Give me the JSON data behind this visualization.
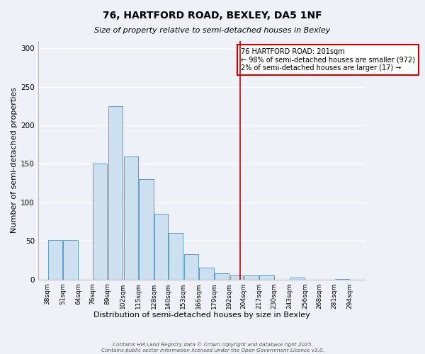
{
  "title": "76, HARTFORD ROAD, BEXLEY, DA5 1NF",
  "subtitle": "Size of property relative to semi-detached houses in Bexley",
  "xlabel": "Distribution of semi-detached houses by size in Bexley",
  "ylabel": "Number of semi-detached properties",
  "bar_left_edges": [
    38,
    51,
    64,
    76,
    89,
    102,
    115,
    128,
    140,
    153,
    166,
    179,
    192,
    204,
    217,
    230,
    243,
    256,
    268,
    281
  ],
  "bar_widths": [
    13,
    13,
    12,
    13,
    13,
    13,
    13,
    12,
    13,
    13,
    13,
    13,
    12,
    13,
    13,
    13,
    13,
    12,
    13,
    13
  ],
  "bar_heights": [
    51,
    51,
    0,
    150,
    225,
    160,
    130,
    85,
    60,
    33,
    15,
    8,
    5,
    5,
    5,
    0,
    2,
    0,
    0,
    1
  ],
  "tick_labels": [
    "38sqm",
    "51sqm",
    "64sqm",
    "76sqm",
    "89sqm",
    "102sqm",
    "115sqm",
    "128sqm",
    "140sqm",
    "153sqm",
    "166sqm",
    "179sqm",
    "192sqm",
    "204sqm",
    "217sqm",
    "230sqm",
    "243sqm",
    "256sqm",
    "268sqm",
    "281sqm",
    "294sqm"
  ],
  "tick_positions": [
    38,
    51,
    64,
    76,
    89,
    102,
    115,
    128,
    140,
    153,
    166,
    179,
    192,
    204,
    217,
    230,
    243,
    256,
    268,
    281,
    294
  ],
  "bar_face_color": "#cce0f0",
  "bar_edge_color": "#5b9bd5",
  "vline_x": 201,
  "vline_color": "#cc0000",
  "annotation_title": "76 HARTFORD ROAD: 201sqm",
  "annotation_line1": "← 98% of semi-detached houses are smaller (972)",
  "annotation_line2": "2% of semi-detached houses are larger (17) →",
  "annotation_box_color": "#ffffff",
  "annotation_box_edge": "#cc0000",
  "ylim": [
    0,
    310
  ],
  "xlim": [
    30,
    307
  ],
  "yticks": [
    0,
    50,
    100,
    150,
    200,
    250,
    300
  ],
  "footer1": "Contains HM Land Registry data © Crown copyright and database right 2025.",
  "footer2": "Contains public sector information licensed under the Open Government Licence v3.0.",
  "bg_color": "#eef2f8",
  "title_fontsize": 10,
  "subtitle_fontsize": 8,
  "xlabel_fontsize": 8,
  "ylabel_fontsize": 8
}
